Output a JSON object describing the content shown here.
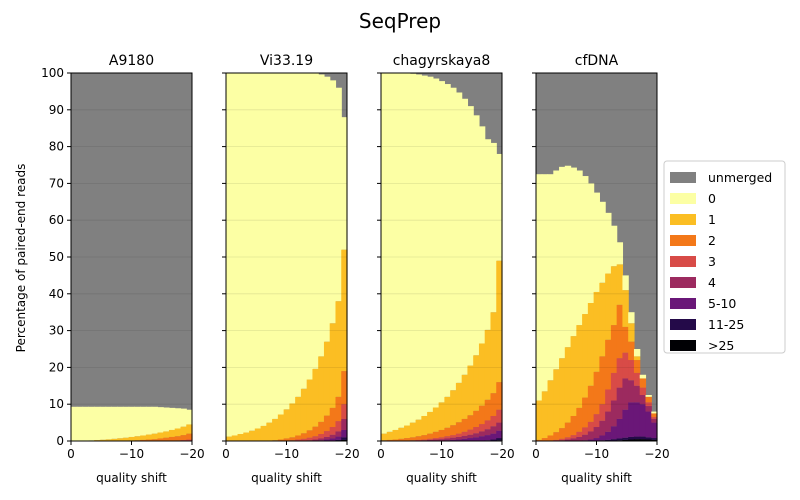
{
  "suptitle": "SeqPrep",
  "colors": {
    "unmerged": "#808080",
    "0": "#fcffa4",
    "1": "#fbbe23",
    "2": "#f37819",
    "3": "#d84b47",
    "4": "#9c2a5f",
    "5-10": "#6a1778",
    "11-25": "#240a49",
    ">25": "#000004"
  },
  "chart_data": {
    "type": "area",
    "stacked": true,
    "xlabel": "quality shift",
    "ylabel": "Percentage of paired-end reads",
    "xlim": [
      0,
      -20
    ],
    "ylim": [
      0,
      100
    ],
    "xticks": [
      0,
      -10,
      -20
    ],
    "xtick_labels": [
      "0",
      "−10",
      "−20"
    ],
    "yticks": [
      0,
      10,
      20,
      30,
      40,
      50,
      60,
      70,
      80,
      90,
      100
    ],
    "ytick_labels": [
      "0",
      "10",
      "20",
      "30",
      "40",
      "50",
      "60",
      "70",
      "80",
      "90",
      "100"
    ],
    "grid": "horizontal",
    "legend_position": "right",
    "legend": [
      "unmerged",
      "0",
      "1",
      "2",
      "3",
      "4",
      "5-10",
      "11-25",
      ">25"
    ],
    "stack_order": [
      ">25",
      "11-25",
      "5-10",
      "4",
      "3",
      "2",
      "1",
      "0"
    ],
    "shifts": [
      0,
      -1,
      -2,
      -3,
      -4,
      -5,
      -6,
      -7,
      -8,
      -9,
      -10,
      -11,
      -12,
      -13,
      -14,
      -15,
      -16,
      -17,
      -18,
      -19,
      -20
    ],
    "panels": [
      {
        "title": "A9180",
        "cumulative_top": {
          ">25": [
            0,
            0,
            0,
            0,
            0,
            0,
            0,
            0,
            0,
            0,
            0,
            0,
            0,
            0,
            0,
            0,
            0,
            0,
            0,
            0,
            0
          ],
          "11-25": [
            0,
            0,
            0,
            0,
            0,
            0,
            0,
            0,
            0,
            0,
            0,
            0,
            0,
            0,
            0,
            0,
            0,
            0,
            0,
            0,
            0
          ],
          "5-10": [
            0,
            0,
            0,
            0,
            0,
            0,
            0,
            0,
            0,
            0,
            0,
            0,
            0,
            0,
            0,
            0,
            0,
            0,
            0,
            0,
            0
          ],
          "4": [
            0,
            0,
            0,
            0,
            0,
            0,
            0,
            0,
            0,
            0,
            0,
            0,
            0,
            0,
            0,
            0,
            0,
            0,
            0,
            0.05,
            0.1
          ],
          "3": [
            0,
            0,
            0,
            0,
            0,
            0,
            0,
            0,
            0,
            0,
            0,
            0,
            0,
            0,
            0,
            0,
            0,
            0.1,
            0.15,
            0.25,
            0.4
          ],
          "2": [
            0,
            0,
            0,
            0,
            0,
            0,
            0,
            0,
            0.05,
            0.1,
            0.15,
            0.2,
            0.3,
            0.4,
            0.5,
            0.7,
            0.9,
            1.1,
            1.3,
            1.6,
            2.0
          ],
          "1": [
            0,
            0.05,
            0.1,
            0.15,
            0.25,
            0.35,
            0.45,
            0.6,
            0.75,
            0.9,
            1.1,
            1.3,
            1.5,
            1.75,
            2.0,
            2.3,
            2.6,
            3.0,
            3.4,
            3.9,
            4.5
          ],
          "0": [
            9.3,
            9.3,
            9.3,
            9.3,
            9.3,
            9.3,
            9.3,
            9.3,
            9.3,
            9.3,
            9.3,
            9.3,
            9.3,
            9.3,
            9.3,
            9.2,
            9.1,
            9.0,
            8.9,
            8.8,
            8.5
          ]
        }
      },
      {
        "title": "Vi33.19",
        "cumulative_top": {
          ">25": [
            0,
            0,
            0,
            0,
            0,
            0,
            0,
            0,
            0,
            0,
            0,
            0,
            0,
            0,
            0,
            0,
            0,
            0,
            0,
            0,
            0.3
          ],
          "11-25": [
            0,
            0,
            0,
            0,
            0,
            0,
            0,
            0,
            0,
            0,
            0,
            0,
            0,
            0,
            0,
            0,
            0,
            0,
            0.1,
            0.3,
            1.0
          ],
          "5-10": [
            0,
            0,
            0,
            0,
            0,
            0,
            0,
            0,
            0,
            0,
            0,
            0,
            0,
            0,
            0,
            0.1,
            0.2,
            0.4,
            0.7,
            1.2,
            3.0
          ],
          "4": [
            0,
            0,
            0,
            0,
            0,
            0,
            0,
            0,
            0,
            0,
            0,
            0,
            0,
            0.1,
            0.2,
            0.4,
            0.7,
            1.1,
            1.7,
            2.6,
            6.0
          ],
          "3": [
            0,
            0,
            0,
            0,
            0,
            0,
            0,
            0,
            0,
            0,
            0.1,
            0.2,
            0.4,
            0.6,
            0.9,
            1.3,
            1.9,
            2.7,
            3.8,
            5.4,
            10.0
          ],
          "2": [
            0,
            0,
            0,
            0,
            0,
            0,
            0,
            0.1,
            0.2,
            0.4,
            0.7,
            1.0,
            1.5,
            2.1,
            2.9,
            3.9,
            5.2,
            6.9,
            9.0,
            12.0,
            19.0
          ],
          "1": [
            1.2,
            1.5,
            1.9,
            2.3,
            2.8,
            3.4,
            4.1,
            5.0,
            6.0,
            7.2,
            8.6,
            10.2,
            12.0,
            14.2,
            16.7,
            19.6,
            23.0,
            27.0,
            32.0,
            38.0,
            52.0
          ],
          "0": [
            100,
            100,
            100,
            100,
            100,
            100,
            100,
            100,
            100,
            100,
            100,
            100,
            100,
            100,
            100,
            99.9,
            99.6,
            99.0,
            98.0,
            96.0,
            88.0
          ]
        }
      },
      {
        "title": "chagyrskaya8",
        "cumulative_top": {
          ">25": [
            0,
            0,
            0,
            0,
            0,
            0,
            0,
            0,
            0,
            0,
            0,
            0,
            0,
            0,
            0,
            0,
            0,
            0,
            0,
            0,
            0.2
          ],
          "11-25": [
            0,
            0,
            0,
            0,
            0,
            0,
            0,
            0,
            0,
            0,
            0,
            0,
            0,
            0,
            0,
            0,
            0,
            0.1,
            0.2,
            0.4,
            0.8
          ],
          "5-10": [
            0,
            0,
            0,
            0,
            0,
            0,
            0,
            0,
            0,
            0,
            0.1,
            0.2,
            0.3,
            0.4,
            0.6,
            0.8,
            1.0,
            1.3,
            1.6,
            2.0,
            2.8
          ],
          "4": [
            0,
            0,
            0,
            0,
            0,
            0,
            0.1,
            0.2,
            0.3,
            0.4,
            0.5,
            0.7,
            0.9,
            1.1,
            1.4,
            1.7,
            2.1,
            2.6,
            3.2,
            4.0,
            5.0
          ],
          "3": [
            0,
            0,
            0,
            0,
            0.1,
            0.2,
            0.3,
            0.4,
            0.6,
            0.8,
            1.0,
            1.3,
            1.6,
            2.0,
            2.5,
            3.1,
            3.8,
            4.6,
            5.6,
            6.8,
            8.5
          ],
          "2": [
            0.2,
            0.3,
            0.4,
            0.6,
            0.8,
            1.0,
            1.3,
            1.6,
            2.0,
            2.5,
            3.0,
            3.6,
            4.3,
            5.1,
            6.0,
            7.0,
            8.2,
            9.6,
            11.2,
            13.0,
            16.0
          ],
          "1": [
            2.0,
            2.5,
            3.0,
            3.6,
            4.2,
            5.0,
            5.8,
            6.8,
            7.9,
            9.1,
            10.5,
            12.0,
            13.8,
            15.8,
            18.0,
            20.5,
            23.3,
            26.5,
            30.2,
            35.0,
            49.0
          ],
          "0": [
            100,
            100,
            100,
            100,
            99.9,
            99.8,
            99.6,
            99.3,
            99.0,
            98.5,
            97.8,
            97.0,
            96.0,
            94.7,
            93.0,
            91.0,
            88.5,
            85.5,
            82.0,
            81.0,
            78.0
          ]
        }
      },
      {
        "title": "cfDNA",
        "cumulative_top": {
          ">25": [
            0,
            0,
            0,
            0,
            0,
            0,
            0,
            0,
            0,
            0,
            0,
            0,
            0,
            0.1,
            0.2,
            0.3,
            0.4,
            0.5,
            0.5,
            0.4,
            0.3
          ],
          "11-25": [
            0,
            0,
            0,
            0,
            0,
            0,
            0,
            0,
            0,
            0,
            0.1,
            0.2,
            0.3,
            0.5,
            0.7,
            0.9,
            1.1,
            1.2,
            1.2,
            1.0,
            0.8
          ],
          "5-10": [
            0,
            0,
            0,
            0,
            0,
            0,
            0,
            0.1,
            0.2,
            0.4,
            0.8,
            1.5,
            2.5,
            4.0,
            6.0,
            8.5,
            10.5,
            10.5,
            10.0,
            8.0,
            5.0
          ],
          "4": [
            0,
            0,
            0,
            0.1,
            0.2,
            0.4,
            0.7,
            1.1,
            1.7,
            2.6,
            3.8,
            5.5,
            8.0,
            11.0,
            14.5,
            17.0,
            16.5,
            15.0,
            12.5,
            9.5,
            6.0
          ],
          "3": [
            0,
            0,
            0.1,
            0.3,
            0.6,
            1.0,
            1.6,
            2.5,
            3.7,
            5.2,
            7.3,
            10.0,
            14.0,
            18.5,
            22.5,
            24.0,
            22.0,
            18.5,
            14.5,
            10.5,
            6.5
          ],
          "2": [
            0.3,
            0.8,
            1.5,
            2.4,
            3.5,
            5.0,
            6.8,
            9.0,
            11.8,
            15.0,
            18.8,
            23.0,
            27.5,
            31.5,
            37.0,
            31.0,
            27.0,
            22.0,
            17.0,
            12.0,
            7.5
          ],
          "1": [
            11.0,
            13.5,
            16.5,
            19.5,
            22.5,
            25.5,
            28.5,
            31.5,
            34.5,
            37.5,
            40.5,
            43.0,
            45.5,
            47.5,
            48.0,
            41.0,
            32.0,
            23.0,
            17.0,
            12.0,
            7.5
          ],
          "0": [
            72.5,
            72.5,
            72.5,
            73.5,
            74.5,
            74.8,
            74.3,
            73.5,
            72.0,
            70.0,
            67.5,
            65.0,
            62.0,
            58.5,
            54.0,
            45.0,
            35.0,
            25.0,
            18.0,
            12.5,
            8.0
          ]
        }
      }
    ]
  }
}
